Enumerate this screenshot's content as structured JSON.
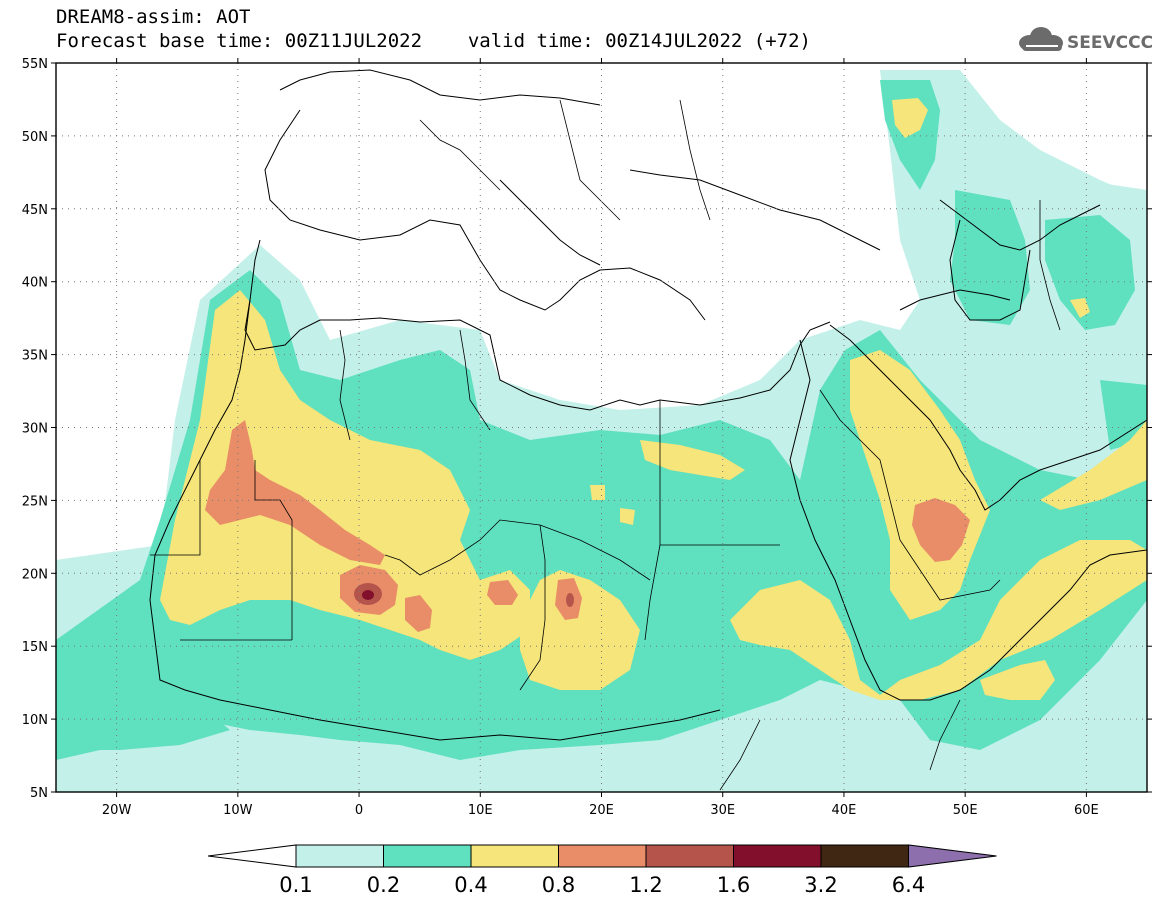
{
  "header": {
    "line1": "DREAM8-assim: AOT",
    "line2_left": "Forecast base time: 00Z11JUL2022",
    "line2_right": "valid time: 00Z14JUL2022 (+72)"
  },
  "logo": {
    "text": "SEEVCCC",
    "icon": "cloud-icon"
  },
  "map": {
    "lon_range": [
      -25,
      65
    ],
    "lat_range": [
      5,
      55
    ],
    "lat_ticks": [
      "55N",
      "50N",
      "45N",
      "40N",
      "35N",
      "30N",
      "25N",
      "20N",
      "15N",
      "10N",
      "5N"
    ],
    "lon_ticks": [
      "20W",
      "10W",
      "0",
      "10E",
      "20E",
      "30E",
      "40E",
      "50E",
      "60E"
    ],
    "grid": "dotted",
    "field": "Aerosol Optical Thickness"
  },
  "colorbar": {
    "levels": [
      "0.1",
      "0.2",
      "0.4",
      "0.8",
      "1.2",
      "1.6",
      "3.2",
      "6.4"
    ],
    "colors": [
      "#c3f0e8",
      "#5fe0bf",
      "#f5e57a",
      "#e98c68",
      "#b5544b",
      "#820f2c",
      "#3f2713",
      "#8e6fae"
    ]
  }
}
